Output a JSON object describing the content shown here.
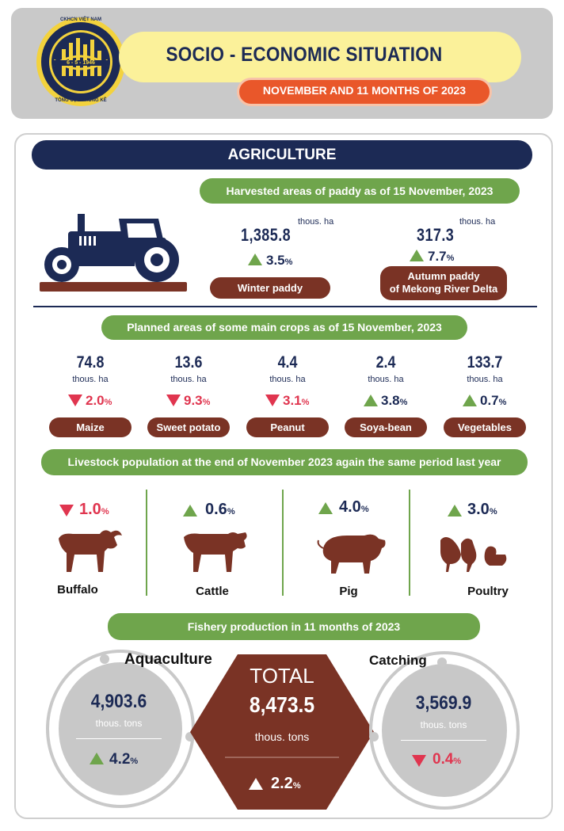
{
  "header": {
    "logo_text_top": "CKHCN VIỆT NAM",
    "logo_date": "6 - 5 - 1946",
    "logo_text_bottom": "TỔNG CỤC THỐNG KÊ",
    "title": "SOCIO - ECONOMIC SITUATION",
    "subtitle": "NOVEMBER AND 11 MONTHS OF 2023"
  },
  "agriculture": {
    "title": "AGRICULTURE",
    "paddy": {
      "heading": "Harvested areas of paddy as of 15 November, 2023",
      "items": [
        {
          "value": "1,385.8",
          "unit": "thous. ha",
          "change": "3.5",
          "direction": "up",
          "label": "Winter paddy"
        },
        {
          "value": "317.3",
          "unit": "thous. ha",
          "change": "7.7",
          "direction": "up",
          "label_line1": "Autumn paddy",
          "label_line2": "of Mekong River Delta"
        }
      ]
    },
    "crops": {
      "heading": "Planned areas of some main crops as of 15 November, 2023",
      "items": [
        {
          "value": "74.8",
          "unit": "thous. ha",
          "change": "2.0",
          "direction": "down",
          "label": "Maize"
        },
        {
          "value": "13.6",
          "unit": "thous. ha",
          "change": "9.3",
          "direction": "down",
          "label": "Sweet potato"
        },
        {
          "value": "4.4",
          "unit": "thous. ha",
          "change": "3.1",
          "direction": "down",
          "label": "Peanut"
        },
        {
          "value": "2.4",
          "unit": "thous. ha",
          "change": "3.8",
          "direction": "up",
          "label": "Soya-bean"
        },
        {
          "value": "133.7",
          "unit": "thous. ha",
          "change": "0.7",
          "direction": "up",
          "label": "Vegetables"
        }
      ]
    },
    "livestock": {
      "heading": "Livestock population at the end of November 2023 again the same period last year",
      "items": [
        {
          "change": "1.0",
          "direction": "down",
          "label": "Buffalo"
        },
        {
          "change": "0.6",
          "direction": "up",
          "label": "Cattle"
        },
        {
          "change": "4.0",
          "direction": "up",
          "label": "Pig"
        },
        {
          "change": "3.0",
          "direction": "up",
          "label": "Poultry"
        }
      ]
    },
    "fishery": {
      "heading": "Fishery production in 11 months of 2023",
      "aquaculture": {
        "label": "Aquaculture",
        "value": "4,903.6",
        "unit": "thous. tons",
        "change": "4.2",
        "direction": "up"
      },
      "total": {
        "label": "TOTAL",
        "value": "8,473.5",
        "unit": "thous. tons",
        "change": "2.2",
        "direction": "up"
      },
      "catching": {
        "label": "Catching",
        "value": "3,569.9",
        "unit": "thous. tons",
        "change": "0.4",
        "direction": "down"
      }
    },
    "percent_symbol": "%"
  },
  "colors": {
    "navy": "#1c2a55",
    "green": "#6fa54c",
    "brown": "#7a3325",
    "red": "#e0354f",
    "orange": "#e9572a",
    "yellow": "#fbf19a",
    "grey": "#c9c9c9"
  },
  "icons": [
    "tractor-icon",
    "buffalo-icon",
    "cattle-icon",
    "pig-icon",
    "poultry-icon",
    "logo-emblem"
  ]
}
